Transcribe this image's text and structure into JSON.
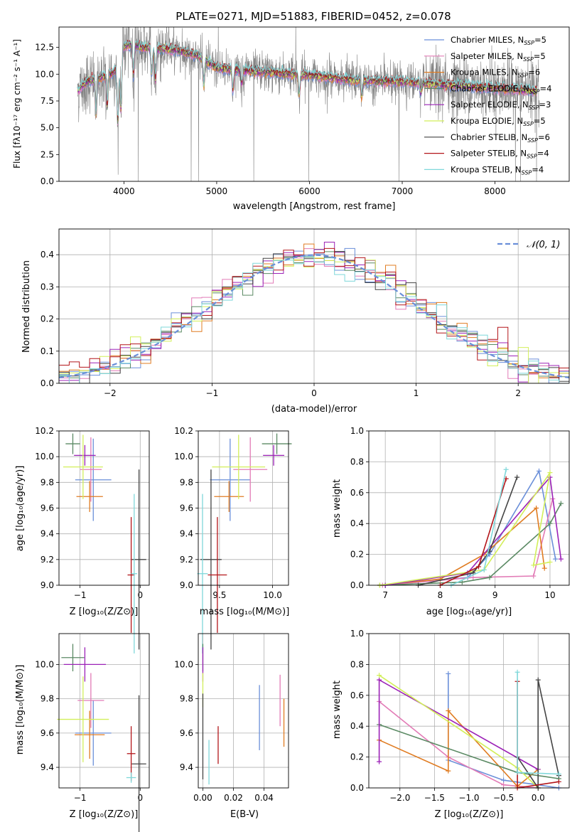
{
  "title": "PLATE=0271, MJD=51883, FIBERID=0452, z=0.078",
  "chart_data": [
    {
      "type": "line",
      "id": "spectrum",
      "xlabel": "wavelength [Angstrom, rest frame]",
      "ylabel": "Flux [fλ10⁻¹⁷ erg cm⁻² s⁻¹ A⁻¹]",
      "xlim": [
        3300,
        8800
      ],
      "ylim": [
        0,
        14.4
      ],
      "xticks": [
        4000,
        5000,
        6000,
        7000,
        8000
      ],
      "yticks": [
        0.0,
        2.5,
        5.0,
        7.5,
        10.0,
        12.5
      ],
      "legend_position": "upper-right",
      "data_color": "#808080",
      "continuum": {
        "x": [
          3500,
          3600,
          3800,
          3950,
          4000,
          4100,
          4200,
          4400,
          4600,
          4800,
          5000,
          5200,
          5500,
          6000,
          6500,
          7000,
          7500,
          8000,
          8500
        ],
        "y": [
          8.5,
          9.3,
          9.8,
          10.5,
          12.6,
          12.8,
          12.5,
          12.4,
          12.2,
          11.7,
          10.6,
          10.4,
          10.2,
          9.9,
          9.4,
          9.3,
          9.0,
          8.7,
          8.4
        ]
      },
      "series": [
        {
          "name": "Chabrier MILES, N_SSP=5",
          "color": "#6a8fd9"
        },
        {
          "name": "Salpeter MILES, N_SSP=5",
          "color": "#e27bb6"
        },
        {
          "name": "Kroupa MILES, N_SSP=6",
          "color": "#e07c22"
        },
        {
          "name": "Chabrier ELODIE, N_SSP=4",
          "color": "#5b8a64"
        },
        {
          "name": "Salpeter ELODIE, N_SSP=3",
          "color": "#9c22b7"
        },
        {
          "name": "Kroupa ELODIE, N_SSP=5",
          "color": "#d2ef5a"
        },
        {
          "name": "Chabrier STELIB, N_SSP=6",
          "color": "#444444"
        },
        {
          "name": "Salpeter STELIB, N_SSP=4",
          "color": "#b3161a"
        },
        {
          "name": "Kroupa STELIB, N_SSP=4",
          "color": "#7fd8da"
        }
      ]
    },
    {
      "type": "line",
      "id": "residuals",
      "xlabel": "(data-model)/error",
      "ylabel": "Normed distribution",
      "xlim": [
        -2.5,
        2.5
      ],
      "ylim": [
        0,
        0.48
      ],
      "xticks": [
        -2,
        -1,
        0,
        1,
        2
      ],
      "yticks": [
        0.0,
        0.1,
        0.2,
        0.3,
        0.4
      ],
      "grid": true,
      "legend_position": "upper-right",
      "series": [
        {
          "name": "𝒩(0, 1)",
          "color": "#6a8fd9",
          "style": "dashed",
          "mu": 0,
          "sigma": 1
        }
      ],
      "histograms": {
        "bin_width": 0.1,
        "range": [
          -2.5,
          2.5
        ],
        "colors": [
          "#6a8fd9",
          "#e27bb6",
          "#e07c22",
          "#5b8a64",
          "#9c22b7",
          "#d2ef5a",
          "#444444",
          "#b3161a",
          "#7fd8da"
        ]
      }
    },
    {
      "type": "scatter",
      "id": "age-vs-Z",
      "xlabel": "Z [log₁₀(Z/Z⊙)]",
      "ylabel": "age  [log₁₀(age/yr)]",
      "xlim": [
        -1.35,
        0.15
      ],
      "ylim": [
        9.0,
        10.2
      ],
      "xticks": [
        -1,
        0
      ],
      "xticklabels": [
        "−1",
        "0"
      ],
      "yticks": [
        9.0,
        9.2,
        9.4,
        9.6,
        9.8,
        10.0,
        10.2
      ],
      "yticklabels": [
        "9.0",
        "9.2",
        "9.4",
        "9.6",
        "9.8",
        "10.0",
        "10.2"
      ],
      "grid": true,
      "points": [
        {
          "x": -0.78,
          "y": 9.82,
          "xerr": 0.3,
          "yerr": 0.32,
          "color": "#6a8fd9"
        },
        {
          "x": -0.82,
          "y": 9.9,
          "xerr": 0.18,
          "yerr": 0.25,
          "color": "#e27bb6"
        },
        {
          "x": -0.84,
          "y": 9.69,
          "xerr": 0.22,
          "yerr": 0.12,
          "color": "#e07c22"
        },
        {
          "x": -1.12,
          "y": 10.1,
          "xerr": 0.12,
          "yerr": 0.08,
          "color": "#5b8a64"
        },
        {
          "x": -0.92,
          "y": 10.01,
          "xerr": 0.18,
          "yerr": 0.08,
          "color": "#9c22b7"
        },
        {
          "x": -0.95,
          "y": 9.92,
          "xerr": 0.33,
          "yerr": 0.25,
          "color": "#d2ef5a"
        },
        {
          "x": -0.02,
          "y": 9.2,
          "xerr": 0.12,
          "yerr": 0.7,
          "color": "#444444"
        },
        {
          "x": -0.15,
          "y": 9.08,
          "xerr": 0.06,
          "yerr": 0.45,
          "color": "#b3161a"
        },
        {
          "x": -0.1,
          "y": 9.09,
          "xerr": 0.05,
          "yerr": 0.62,
          "color": "#7fd8da"
        }
      ]
    },
    {
      "type": "scatter",
      "id": "age-vs-mass",
      "xlabel": "mass [log₁₀(M/M⊙)]",
      "xlim": [
        9.3,
        10.15
      ],
      "ylim": [
        9.0,
        10.2
      ],
      "xticks": [
        9.5,
        10.0
      ],
      "xticklabels": [
        "9.5",
        "10.0"
      ],
      "yticks": [
        9.0,
        9.2,
        9.4,
        9.6,
        9.8,
        10.0,
        10.2
      ],
      "yticklabels": [
        "9.0",
        "9.2",
        "9.4",
        "9.6",
        "9.8",
        "10.0",
        "10.2"
      ],
      "grid": true,
      "points": [
        {
          "x": 9.6,
          "y": 9.82,
          "xerr": 0.19,
          "yerr": 0.32,
          "color": "#6a8fd9"
        },
        {
          "x": 9.79,
          "y": 9.9,
          "xerr": 0.16,
          "yerr": 0.25,
          "color": "#e27bb6"
        },
        {
          "x": 9.59,
          "y": 9.69,
          "xerr": 0.14,
          "yerr": 0.12,
          "color": "#e07c22"
        },
        {
          "x": 10.04,
          "y": 10.1,
          "xerr": 0.14,
          "yerr": 0.08,
          "color": "#5b8a64"
        },
        {
          "x": 10.01,
          "y": 10.01,
          "xerr": 0.1,
          "yerr": 0.08,
          "color": "#9c22b7"
        },
        {
          "x": 9.68,
          "y": 9.92,
          "xerr": 0.25,
          "yerr": 0.25,
          "color": "#d2ef5a"
        },
        {
          "x": 9.42,
          "y": 9.2,
          "xerr": 0.1,
          "yerr": 0.7,
          "color": "#444444"
        },
        {
          "x": 9.48,
          "y": 9.08,
          "xerr": 0.09,
          "yerr": 0.45,
          "color": "#b3161a"
        },
        {
          "x": 9.34,
          "y": 9.09,
          "xerr": 0.05,
          "yerr": 0.62,
          "color": "#7fd8da"
        }
      ]
    },
    {
      "type": "line",
      "id": "weight-vs-age",
      "xlabel": "age  [log₁₀(age/yr)]",
      "ylabel": "mass weight",
      "xlim": [
        6.7,
        10.35
      ],
      "ylim": [
        0,
        1
      ],
      "xticks": [
        7,
        8,
        9,
        10
      ],
      "xticklabels": [
        "7",
        "8",
        "9",
        "10"
      ],
      "yticks": [
        0.0,
        0.2,
        0.4,
        0.6,
        0.8,
        1.0
      ],
      "yticklabels": [
        "0.0",
        "0.2",
        "0.4",
        "0.6",
        "0.8",
        "1.0"
      ],
      "grid": true,
      "series": [
        {
          "color": "#6a8fd9",
          "x": [
            7.0,
            8.5,
            8.9,
            9.8,
            10.1
          ],
          "y": [
            0.0,
            0.05,
            0.2,
            0.74,
            0.17
          ]
        },
        {
          "color": "#e27bb6",
          "x": [
            6.95,
            8.6,
            9.7,
            10.05
          ],
          "y": [
            0.0,
            0.05,
            0.06,
            0.56
          ]
        },
        {
          "color": "#e07c22",
          "x": [
            6.9,
            8.0,
            8.8,
            9.75,
            9.9
          ],
          "y": [
            0.0,
            0.04,
            0.2,
            0.5,
            0.11
          ]
        },
        {
          "color": "#5b8a64",
          "x": [
            6.9,
            8.4,
            8.9,
            10.0,
            10.2
          ],
          "y": [
            0.0,
            0.02,
            0.05,
            0.4,
            0.53
          ]
        },
        {
          "color": "#9c22b7",
          "x": [
            7.0,
            8.5,
            10.0,
            10.2
          ],
          "y": [
            0.0,
            0.08,
            0.7,
            0.17
          ]
        },
        {
          "color": "#d2ef5a",
          "x": [
            6.9,
            8.8,
            10.0,
            9.7,
            10.0
          ],
          "y": [
            0.0,
            0.1,
            0.73,
            0.13,
            0.15
          ]
        },
        {
          "color": "#444444",
          "x": [
            7.6,
            8.6,
            8.9,
            9.4
          ],
          "y": [
            0.0,
            0.08,
            0.22,
            0.7
          ]
        },
        {
          "color": "#b3161a",
          "x": [
            8.0,
            8.7,
            9.2
          ],
          "y": [
            0.0,
            0.12,
            0.69
          ]
        },
        {
          "color": "#7fd8da",
          "x": [
            8.2,
            8.8,
            9.2
          ],
          "y": [
            0.0,
            0.1,
            0.75
          ]
        }
      ]
    },
    {
      "type": "scatter",
      "id": "mass-vs-Z",
      "xlabel": "Z [log₁₀(Z/Z⊙)]",
      "ylabel": "mass [log₁₀(M/M⊙)]",
      "xlim": [
        -1.35,
        0.15
      ],
      "ylim": [
        9.28,
        10.18
      ],
      "xticks": [
        -1,
        0
      ],
      "xticklabels": [
        "−1",
        "0"
      ],
      "yticks": [
        9.4,
        9.6,
        9.8,
        10.0
      ],
      "yticklabels": [
        "9.4",
        "9.6",
        "9.8",
        "10.0"
      ],
      "grid": true,
      "points": [
        {
          "x": -0.78,
          "y": 9.6,
          "xerr": 0.3,
          "yerr": 0.19,
          "color": "#6a8fd9"
        },
        {
          "x": -0.82,
          "y": 9.79,
          "xerr": 0.22,
          "yerr": 0.16,
          "color": "#e27bb6"
        },
        {
          "x": -0.84,
          "y": 9.59,
          "xerr": 0.25,
          "yerr": 0.14,
          "color": "#e07c22"
        },
        {
          "x": -1.12,
          "y": 10.04,
          "xerr": 0.19,
          "yerr": 0.08,
          "color": "#5b8a64"
        },
        {
          "x": -0.92,
          "y": 10.0,
          "xerr": 0.35,
          "yerr": 0.1,
          "color": "#9c22b7"
        },
        {
          "x": -0.95,
          "y": 9.68,
          "xerr": 0.43,
          "yerr": 0.25,
          "color": "#d2ef5a"
        },
        {
          "x": -0.02,
          "y": 9.42,
          "xerr": 0.12,
          "yerr": 0.4,
          "color": "#444444"
        },
        {
          "x": -0.15,
          "y": 9.48,
          "xerr": 0.07,
          "yerr": 0.16,
          "color": "#b3161a"
        },
        {
          "x": -0.15,
          "y": 9.34,
          "xerr": 0.08,
          "yerr": 0.03,
          "color": "#7fd8da"
        }
      ]
    },
    {
      "type": "scatter",
      "id": "mass-vs-ebv",
      "xlabel": "E(B-V)",
      "xlim": [
        -0.003,
        0.056
      ],
      "ylim": [
        9.28,
        10.18
      ],
      "xticks": [
        0.0,
        0.02,
        0.04
      ],
      "xticklabels": [
        "0.00",
        "0.02",
        "0.04"
      ],
      "yticks": [
        9.4,
        9.6,
        9.8,
        10.0
      ],
      "yticklabels": [
        "9.4",
        "9.6",
        "9.8",
        "10.0"
      ],
      "grid": true,
      "points": [
        {
          "x": 0.037,
          "y": 9.69,
          "xerr": 0.0,
          "yerr": 0.19,
          "color": "#6a8fd9"
        },
        {
          "x": 0.0505,
          "y": 9.79,
          "xerr": 0.0,
          "yerr": 0.15,
          "color": "#e27bb6"
        },
        {
          "x": 0.053,
          "y": 9.66,
          "xerr": 0.0,
          "yerr": 0.14,
          "color": "#e07c22"
        },
        {
          "x": 0.0,
          "y": 10.04,
          "xerr": 0.0,
          "yerr": 0.08,
          "color": "#5b8a64"
        },
        {
          "x": 0.0,
          "y": 10.0,
          "xerr": 0.0,
          "yerr": 0.1,
          "color": "#9c22b7"
        },
        {
          "x": 0.0,
          "y": 9.85,
          "xerr": 0.0,
          "yerr": 0.1,
          "color": "#d2ef5a"
        },
        {
          "x": 0.0,
          "y": 9.58,
          "xerr": 0.0,
          "yerr": 0.25,
          "color": "#444444"
        },
        {
          "x": 0.01,
          "y": 9.53,
          "xerr": 0.0,
          "yerr": 0.11,
          "color": "#b3161a"
        },
        {
          "x": 0.004,
          "y": 9.43,
          "xerr": 0.0,
          "yerr": 0.13,
          "color": "#7fd8da"
        }
      ]
    },
    {
      "type": "line",
      "id": "weight-vs-Z",
      "xlabel": "Z [log₁₀(Z/Z⊙)]",
      "ylabel": "mass weight",
      "xlim": [
        -2.45,
        0.45
      ],
      "ylim": [
        0,
        1
      ],
      "xticks": [
        -2.0,
        -1.5,
        -1.0,
        -0.5,
        0.0
      ],
      "xticklabels": [
        "−2.0",
        "−1.5",
        "−1.0",
        "−0.5",
        "0.0"
      ],
      "yticks": [
        0.0,
        0.2,
        0.4,
        0.6,
        0.8,
        1.0
      ],
      "yticklabels": [
        "0.0",
        "0.2",
        "0.4",
        "0.6",
        "0.8",
        "1.0"
      ],
      "grid": true,
      "series": [
        {
          "color": "#6a8fd9",
          "x": [
            -1.3,
            -1.3,
            -0.5,
            0.0,
            0.3
          ],
          "y": [
            0.74,
            0.18,
            0.05,
            0.02,
            0.0
          ]
        },
        {
          "color": "#e27bb6",
          "x": [
            -2.3,
            -1.3,
            -0.5,
            0.0
          ],
          "y": [
            0.56,
            0.2,
            0.02,
            0.0
          ]
        },
        {
          "color": "#e07c22",
          "x": [
            -2.3,
            -1.3,
            -1.3,
            -0.3,
            0.0
          ],
          "y": [
            0.31,
            0.11,
            0.5,
            0.01,
            0.12
          ]
        },
        {
          "color": "#5b8a64",
          "x": [
            -2.3,
            -0.3,
            0.3
          ],
          "y": [
            0.41,
            0.1,
            0.06
          ]
        },
        {
          "color": "#9c22b7",
          "x": [
            -2.3,
            -2.3,
            0.0
          ],
          "y": [
            0.17,
            0.7,
            0.12
          ]
        },
        {
          "color": "#d2ef5a",
          "x": [
            -2.3,
            -0.3,
            0.0
          ],
          "y": [
            0.73,
            0.13,
            0.0
          ]
        },
        {
          "color": "#444444",
          "x": [
            -0.3,
            0.0,
            0.0,
            0.3
          ],
          "y": [
            0.2,
            0.0,
            0.7,
            0.08
          ]
        },
        {
          "color": "#b3161a",
          "x": [
            -0.3,
            -0.3,
            0.3
          ],
          "y": [
            0.69,
            0.0,
            0.04
          ]
        },
        {
          "color": "#7fd8da",
          "x": [
            -0.3,
            -0.3,
            0.3
          ],
          "y": [
            0.75,
            0.1,
            0.09
          ]
        }
      ]
    }
  ]
}
